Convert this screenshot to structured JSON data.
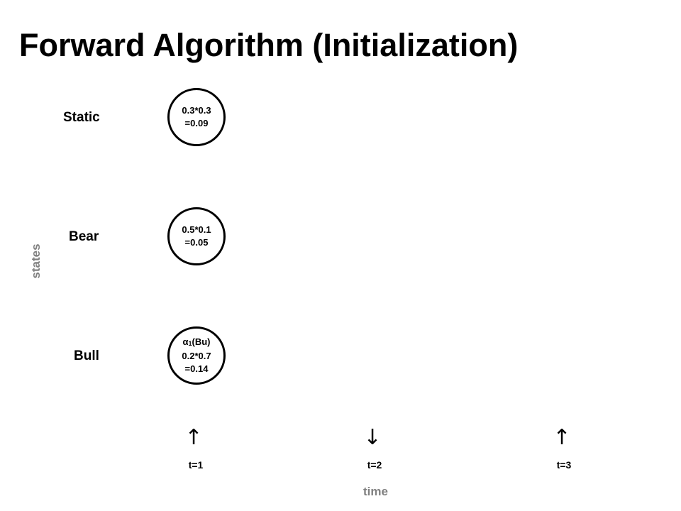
{
  "title": "Forward Algorithm (Initialization)",
  "axes": {
    "y_label": "states",
    "x_label": "time"
  },
  "states": [
    {
      "label": "Static",
      "node_lines": [
        "0.3*0.3",
        "=0.09"
      ]
    },
    {
      "label": "Bear",
      "node_lines": [
        "0.5*0.1",
        "=0.05"
      ]
    },
    {
      "label": "Bull",
      "node_lines": [
        "0.2*0.7",
        "=0.14"
      ],
      "node_heading": {
        "symbol": "α",
        "sub": "1",
        "rest": "(Bu)"
      }
    }
  ],
  "timesteps": [
    {
      "label": "t=1",
      "arrow": "↑"
    },
    {
      "label": "t=2",
      "arrow": "↓"
    },
    {
      "label": "t=3",
      "arrow": "↑"
    }
  ]
}
